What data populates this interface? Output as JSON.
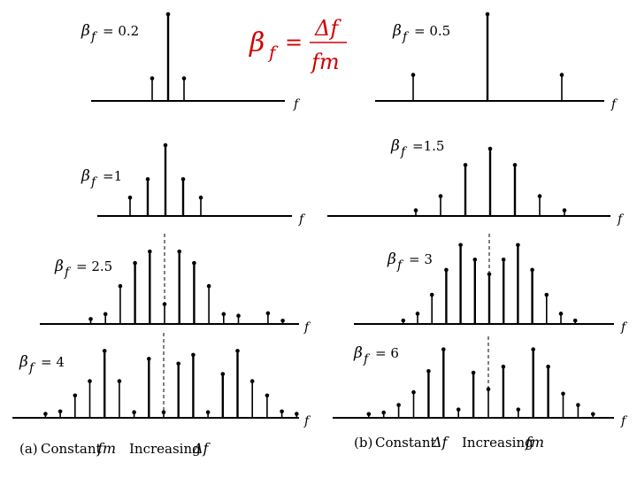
{
  "formula": {
    "beta": "β",
    "sub": "f",
    "equals": "=",
    "numerator": "Δf",
    "denominator": "fm",
    "color": "#d00000"
  },
  "axis_label": "f",
  "panels": [
    {
      "beta_symbol": "β",
      "sub": "f",
      "value_text": "= 0.2",
      "lines": [
        {
          "rel": -1,
          "amp": 0.26
        },
        {
          "rel": 0,
          "amp": 1.0
        },
        {
          "rel": 1,
          "amp": 0.26
        }
      ]
    },
    {
      "beta_symbol": "β",
      "sub": "f",
      "value_text": "= 0.5",
      "lines": [
        {
          "rel": -1,
          "amp": 0.3
        },
        {
          "rel": 0,
          "amp": 1.0
        },
        {
          "rel": 1,
          "amp": 0.3
        }
      ]
    },
    {
      "beta_symbol": "β",
      "sub": "f",
      "value_text": "=1",
      "lines": [
        {
          "rel": -2,
          "amp": 0.26
        },
        {
          "rel": -1,
          "amp": 0.52
        },
        {
          "rel": 0,
          "amp": 1.0
        },
        {
          "rel": 1,
          "amp": 0.52
        },
        {
          "rel": 2,
          "amp": 0.26
        }
      ]
    },
    {
      "beta_symbol": "β",
      "sub": "f",
      "value_text": "=1.5",
      "lines": [
        {
          "rel": -3,
          "amp": 0.08
        },
        {
          "rel": -2,
          "amp": 0.28
        },
        {
          "rel": -1,
          "amp": 0.72
        },
        {
          "rel": 0,
          "amp": 0.95
        },
        {
          "rel": 1,
          "amp": 0.72
        },
        {
          "rel": 2,
          "amp": 0.28
        },
        {
          "rel": 3,
          "amp": 0.08
        }
      ]
    },
    {
      "beta_symbol": "β",
      "sub": "f",
      "value_text": "= 2.5",
      "lines": [
        {
          "rel": -5,
          "amp": 0.06
        },
        {
          "rel": -4,
          "amp": 0.12
        },
        {
          "rel": -3,
          "amp": 0.46
        },
        {
          "rel": -2,
          "amp": 0.74
        },
        {
          "rel": -1,
          "amp": 0.88
        },
        {
          "rel": 0,
          "amp": 0.24
        },
        {
          "rel": 1,
          "amp": 0.88
        },
        {
          "rel": 2,
          "amp": 0.74
        },
        {
          "rel": 3,
          "amp": 0.46
        },
        {
          "rel": 4,
          "amp": 0.12
        },
        {
          "rel": 5,
          "amp": 0.1
        },
        {
          "rel": 7,
          "amp": 0.13
        },
        {
          "rel": 8,
          "amp": 0.04
        }
      ]
    },
    {
      "beta_symbol": "β",
      "sub": "f",
      "value_text": "= 3",
      "lines": [
        {
          "rel": -6,
          "amp": 0.04
        },
        {
          "rel": -5,
          "amp": 0.12
        },
        {
          "rel": -4,
          "amp": 0.34
        },
        {
          "rel": -3,
          "amp": 0.63
        },
        {
          "rel": -2,
          "amp": 0.92
        },
        {
          "rel": -1,
          "amp": 0.75
        },
        {
          "rel": 0,
          "amp": 0.58
        },
        {
          "rel": 1,
          "amp": 0.75
        },
        {
          "rel": 2,
          "amp": 0.92
        },
        {
          "rel": 3,
          "amp": 0.63
        },
        {
          "rel": 4,
          "amp": 0.34
        },
        {
          "rel": 5,
          "amp": 0.12
        },
        {
          "rel": 6,
          "amp": 0.04
        }
      ]
    },
    {
      "beta_symbol": "β",
      "sub": "f",
      "value_text": "= 4",
      "lines": [
        {
          "rel": -8,
          "amp": 0.05
        },
        {
          "rel": -7,
          "amp": 0.08
        },
        {
          "rel": -6,
          "amp": 0.28
        },
        {
          "rel": -5,
          "amp": 0.46
        },
        {
          "rel": -4,
          "amp": 0.84
        },
        {
          "rel": -3,
          "amp": 0.46
        },
        {
          "rel": -2,
          "amp": 0.07
        },
        {
          "rel": -1,
          "amp": 0.74
        },
        {
          "rel": 0,
          "amp": 0.07
        },
        {
          "rel": 1,
          "amp": 0.68
        },
        {
          "rel": 2,
          "amp": 0.79
        },
        {
          "rel": 3,
          "amp": 0.07
        },
        {
          "rel": 4,
          "amp": 0.55
        },
        {
          "rel": 5,
          "amp": 0.84
        },
        {
          "rel": 6,
          "amp": 0.46
        },
        {
          "rel": 7,
          "amp": 0.28
        },
        {
          "rel": 8,
          "amp": 0.08
        },
        {
          "rel": 9,
          "amp": 0.05
        }
      ]
    },
    {
      "beta_symbol": "β",
      "sub": "f",
      "value_text": "= 6",
      "lines": [
        {
          "rel": -8,
          "amp": 0.05
        },
        {
          "rel": -7,
          "amp": 0.07
        },
        {
          "rel": -6,
          "amp": 0.17
        },
        {
          "rel": -5,
          "amp": 0.34
        },
        {
          "rel": -4,
          "amp": 0.62
        },
        {
          "rel": -3,
          "amp": 0.91
        },
        {
          "rel": -2,
          "amp": 0.11
        },
        {
          "rel": -1,
          "amp": 0.6
        },
        {
          "rel": 0,
          "amp": 0.38
        },
        {
          "rel": 1,
          "amp": 0.68
        },
        {
          "rel": 2,
          "amp": 0.11
        },
        {
          "rel": 3,
          "amp": 0.91
        },
        {
          "rel": 4,
          "amp": 0.68
        },
        {
          "rel": 5,
          "amp": 0.32
        },
        {
          "rel": 6,
          "amp": 0.17
        },
        {
          "rel": 7,
          "amp": 0.05
        }
      ]
    }
  ],
  "captions": {
    "a": {
      "tag": "(a)",
      "text1": "Constant",
      "sym1": "fm",
      "text2": "Increasing",
      "sym2": "Δf"
    },
    "b": {
      "tag": "(b)",
      "text1": "Constant",
      "sym1": "Δf",
      "text2": "Increasing",
      "sym2": "fm"
    }
  }
}
